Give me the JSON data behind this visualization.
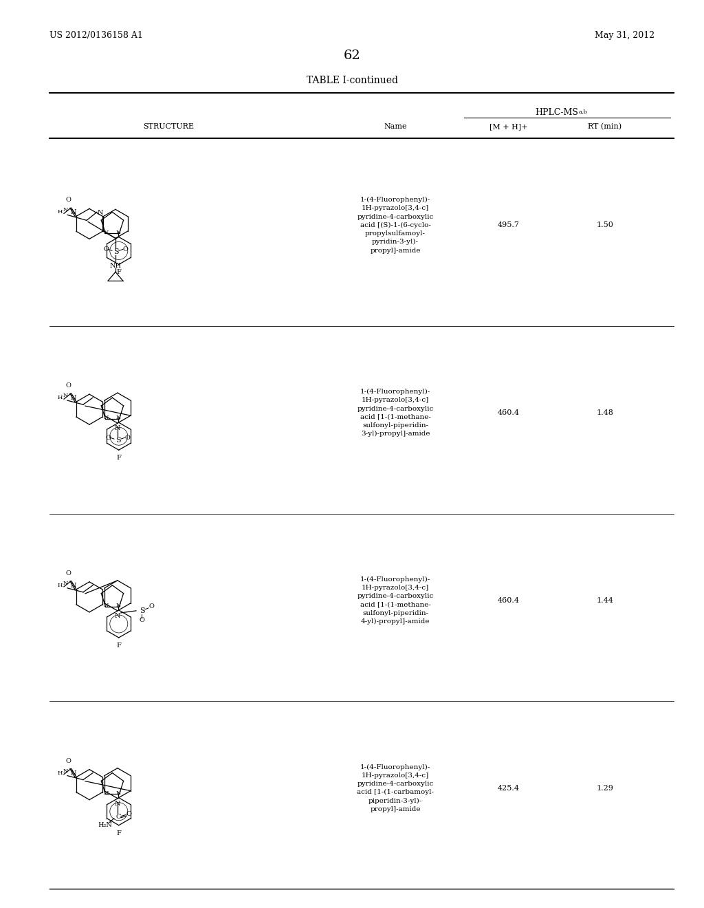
{
  "patent_number": "US 2012/0136158 A1",
  "date": "May 31, 2012",
  "page_number": "62",
  "table_title": "TABLE I-continued",
  "hplc_header": "HPLC-MS",
  "hplc_superscript": "a,b",
  "col_structure": "STRUCTURE",
  "col_name": "Name",
  "col_mh": "[M + H]+",
  "col_rt": "RT (min)",
  "rows": [
    {
      "name": "1-(4-Fluorophenyl)-\n1H-pyrazolo[3,4-c]\npyridine-4-carboxylic\nacid [(S)-1-(6-cyclo-\npropylsulfamoyl-\npyridin-3-yl)-\npropyl]-amide",
      "mh": "495.7",
      "rt": "1.50"
    },
    {
      "name": "1-(4-Fluorophenyl)-\n1H-pyrazolo[3,4-c]\npyridine-4-carboxylic\nacid [1-(1-methane-\nsulfonyl-piperidin-\n3-yl)-propyl]-amide",
      "mh": "460.4",
      "rt": "1.48"
    },
    {
      "name": "1-(4-Fluorophenyl)-\n1H-pyrazolo[3,4-c]\npyridine-4-carboxylic\nacid [1-(1-methane-\nsulfonyl-piperidin-\n4-yl)-propyl]-amide",
      "mh": "460.4",
      "rt": "1.44"
    },
    {
      "name": "1-(4-Fluorophenyl)-\n1H-pyrazolo[3,4-c]\npyridine-4-carboxylic\nacid [1-(1-carbamoyl-\npiperidin-3-yl)-\npropyl]-amide",
      "mh": "425.4",
      "rt": "1.29"
    }
  ],
  "bg_color": "#ffffff",
  "text_color": "#000000"
}
